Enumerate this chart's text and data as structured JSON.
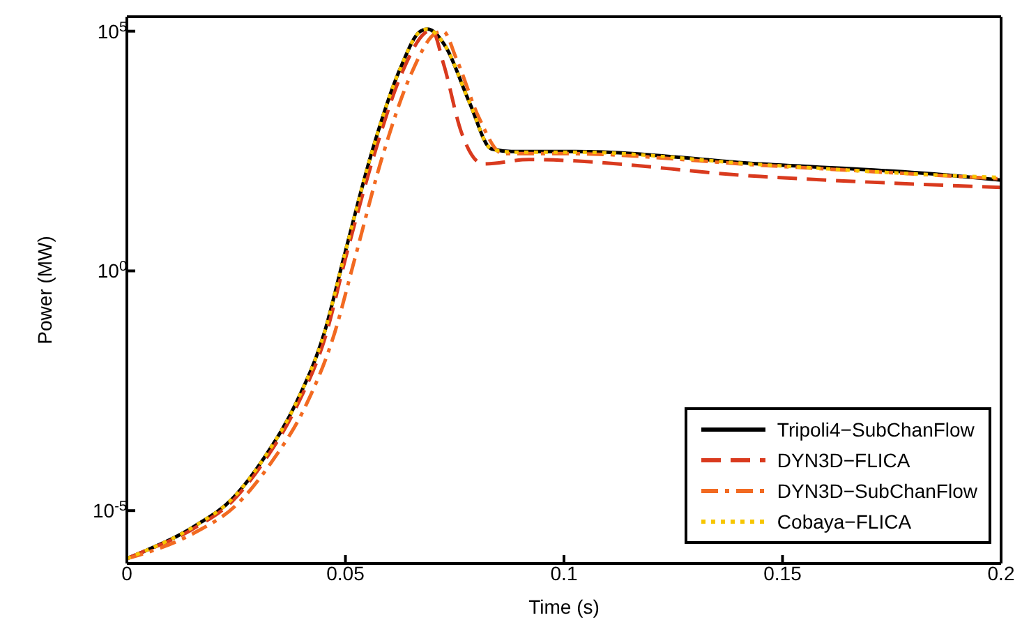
{
  "chart_data": {
    "type": "line",
    "xlabel": "Time (s)",
    "ylabel": "Power (MW)",
    "log": "y",
    "xlim": [
      0,
      0.2
    ],
    "xticks": [
      0,
      0.05,
      0.1,
      0.15,
      0.2
    ],
    "ylim": [
      7.9e-07,
      200000
    ],
    "yticks": [
      {
        "value": 1e-05,
        "label": "10$^{-5}$"
      },
      {
        "value": 1,
        "label": "10$^{0}$"
      },
      {
        "value": 100000,
        "label": "10$^{5}$"
      }
    ],
    "legend": "bottom right",
    "series": [
      {
        "name": "Tripoli4−SubChanFlow",
        "color": "#000000",
        "line_style": "solid",
        "x": [
          0,
          0.003,
          0.0156,
          0.0242,
          0.0315,
          0.0389,
          0.0452,
          0.0497,
          0.056,
          0.0624,
          0.0672,
          0.0688,
          0.0729,
          0.0783,
          0.0834,
          0.088,
          0.1025,
          0.145,
          0.1876,
          0.2
        ],
        "values": [
          1e-06,
          1.3e-06,
          4.8e-06,
          1.8e-05,
          0.00013,
          0.0019,
          0.052,
          2,
          290,
          15500,
          100000,
          110000,
          48000,
          3400,
          350,
          310,
          310,
          170,
          100,
          78
        ]
      },
      {
        "name": "DYN3D−FLICA",
        "color": "#d93a1e",
        "line_style": "dashed",
        "x": [
          0,
          0.003,
          0.0156,
          0.0242,
          0.0315,
          0.039,
          0.0455,
          0.05,
          0.0565,
          0.063,
          0.068,
          0.0697,
          0.0725,
          0.0765,
          0.0815,
          0.092,
          0.145,
          0.2
        ],
        "values": [
          1e-06,
          1.3e-06,
          4.4e-06,
          1.6e-05,
          0.00011,
          0.0016,
          0.045,
          1.8,
          250,
          14000,
          89000,
          110000,
          20000,
          790,
          170,
          210,
          93,
          55
        ]
      },
      {
        "name": "DYN3D−SubChanFlow",
        "color": "#f26a21",
        "line_style": "dashdot",
        "x": [
          0,
          0.003,
          0.0156,
          0.025,
          0.033,
          0.041,
          0.0475,
          0.052,
          0.0585,
          0.065,
          0.0705,
          0.0723,
          0.0755,
          0.0805,
          0.086,
          0.1,
          0.145,
          0.2
        ],
        "values": [
          1e-06,
          1.2e-06,
          3.5e-06,
          1.3e-05,
          0.0001,
          0.0016,
          0.05,
          1.6,
          250,
          12600,
          89000,
          100000,
          25000,
          1600,
          280,
          280,
          160,
          83
        ]
      },
      {
        "name": "Cobaya−FLICA",
        "color": "#f7c600",
        "line_style": "dotted",
        "x": [
          0,
          0.003,
          0.0156,
          0.0242,
          0.0315,
          0.0389,
          0.0452,
          0.0497,
          0.056,
          0.0624,
          0.0672,
          0.0688,
          0.0729,
          0.0783,
          0.0834,
          0.088,
          0.1025,
          0.145,
          0.1876,
          0.2
        ],
        "values": [
          1e-06,
          1.3e-06,
          4.8e-06,
          1.8e-05,
          0.00013,
          0.0019,
          0.052,
          2,
          290,
          15500,
          100000,
          110000,
          48000,
          3400,
          350,
          300,
          300,
          165,
          98,
          89
        ]
      }
    ]
  }
}
